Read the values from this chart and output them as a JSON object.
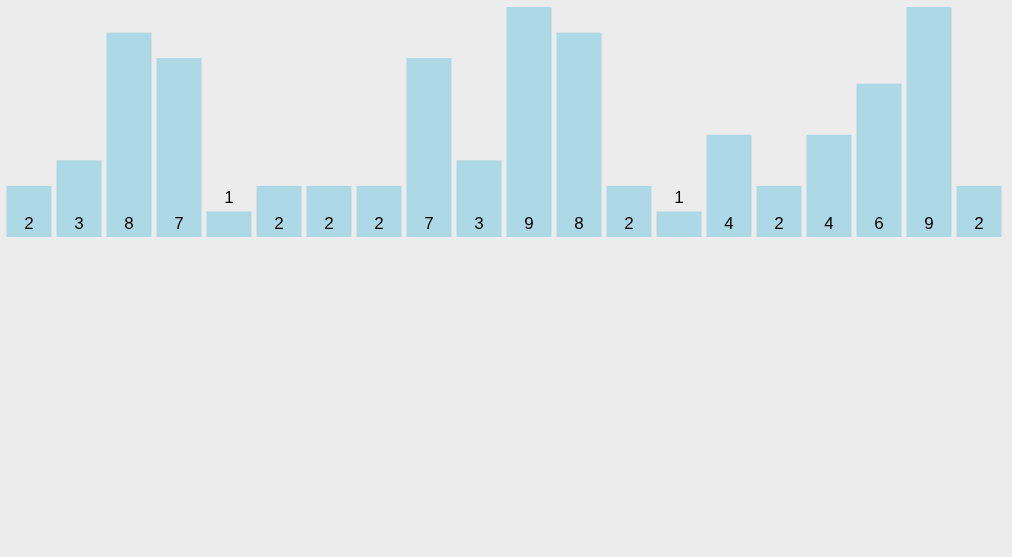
{
  "chart_data": {
    "type": "bar",
    "categories": [
      null,
      null,
      null,
      null,
      null,
      null,
      null,
      null,
      null,
      null,
      null,
      null,
      null,
      null,
      null,
      null,
      null,
      null,
      null,
      null
    ],
    "values": [
      2,
      3,
      8,
      7,
      1,
      2,
      2,
      2,
      7,
      3,
      9,
      8,
      2,
      1,
      4,
      2,
      4,
      6,
      9,
      2
    ],
    "color": "#add8e6",
    "data_labels": true
  }
}
